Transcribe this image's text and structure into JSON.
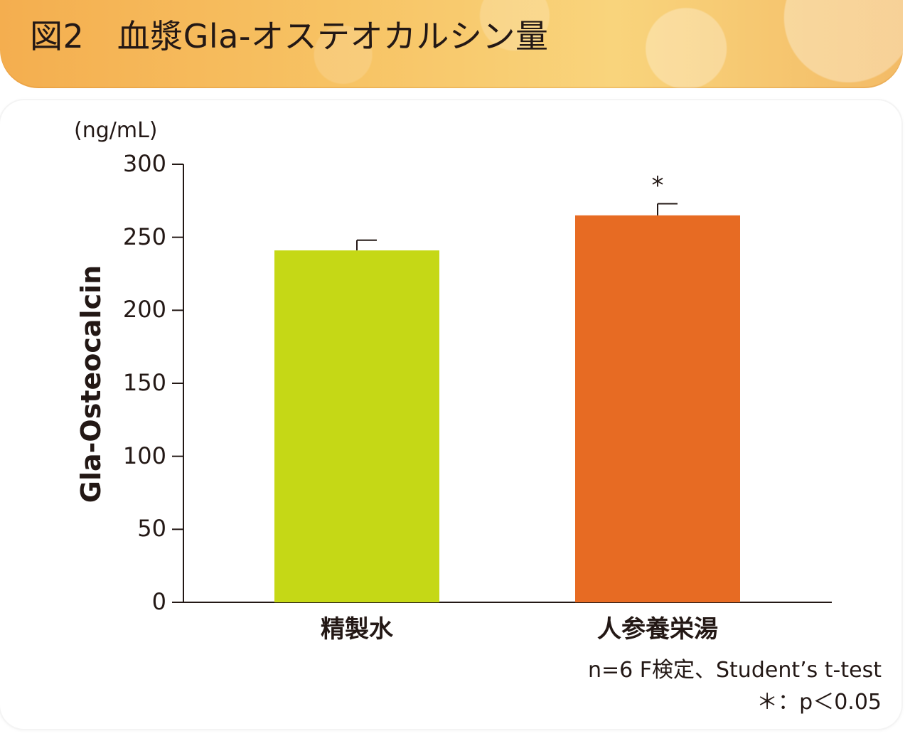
{
  "title": "図2　血漿Gla-オステオカルシン量",
  "chart_data": {
    "type": "bar",
    "unit": "(ng/mL)",
    "ylabel": "Gla-Osteocalcin",
    "categories": [
      "精製水",
      "人参養栄湯"
    ],
    "values": [
      241,
      265
    ],
    "errors": [
      7,
      8
    ],
    "significance": [
      "",
      "*"
    ],
    "ylim": [
      0,
      300
    ],
    "yticks": [
      0,
      50,
      100,
      150,
      200,
      250,
      300
    ],
    "colors": [
      "#c5d816",
      "#e76b23"
    ],
    "grid": false
  },
  "footnotes": {
    "line1": "n=6 F検定、Student’s t-test",
    "line2": "＊：p＜0.05"
  }
}
